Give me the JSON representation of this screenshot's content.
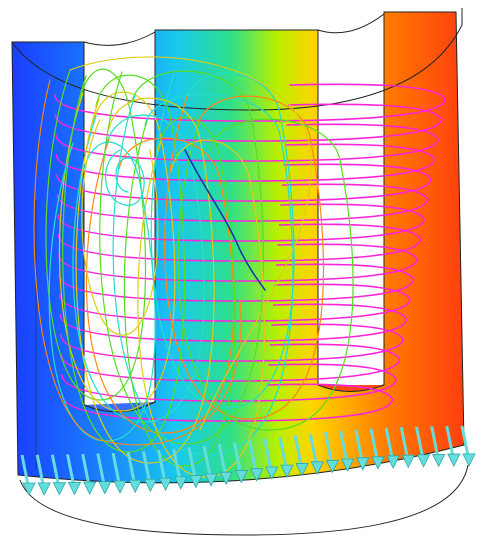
{
  "figure": {
    "subject": "",
    "colors": {
      "background": "#ffffff",
      "outline": "#222222",
      "streamline_magenta": "#ff22dd",
      "streamline_green": "#55dd22",
      "streamline_yellow": "#ddcc11",
      "streamline_cyan": "#22ddcc",
      "streamline_orange": "#ff8811",
      "streamline_blue": "#1133aa",
      "arrow": "#66dddd",
      "arrow_edge": "#2aa8a8",
      "gradient": [
        "#1a3cff",
        "#1a78ff",
        "#19c8f0",
        "#2ee08a",
        "#b8f000",
        "#ffd400",
        "#ff7a00",
        "#ff3a10"
      ]
    },
    "arrow_count": 30
  }
}
